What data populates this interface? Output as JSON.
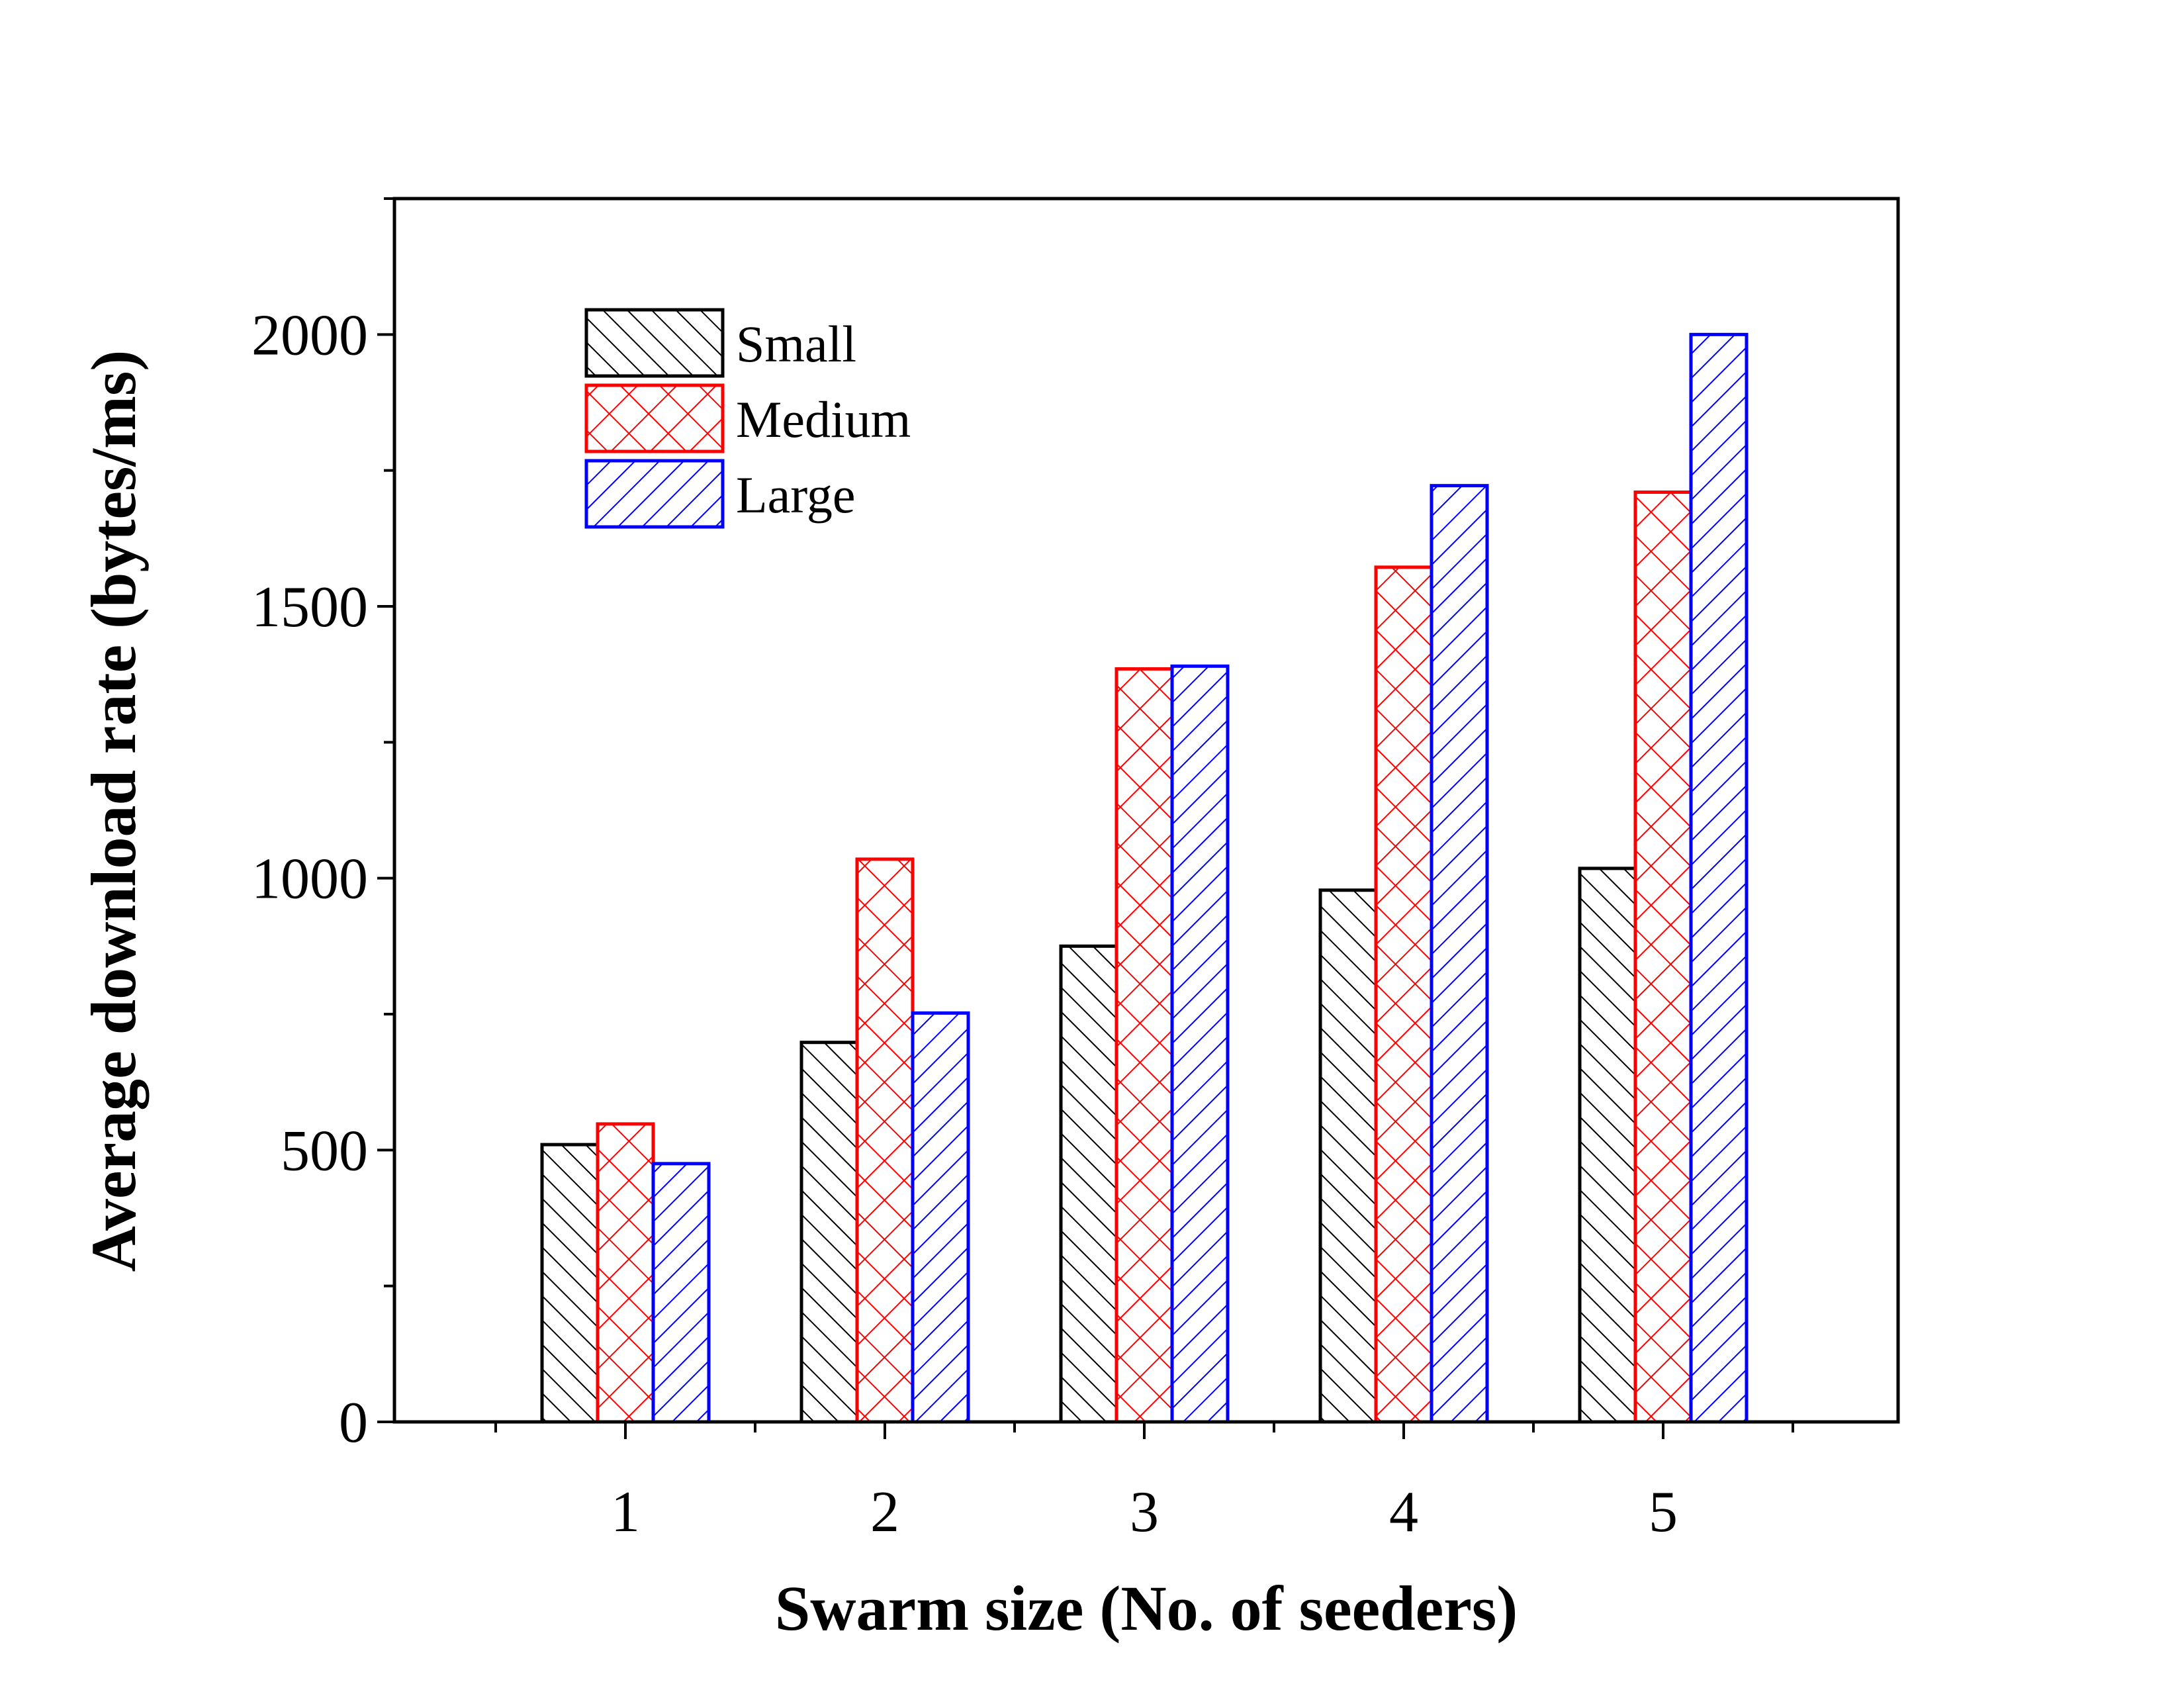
{
  "chart_data": {
    "type": "bar",
    "title": "",
    "xlabel": "Swarm size (No. of seeders)",
    "ylabel": "Average download rate (bytes/ms)",
    "categories": [
      "1",
      "2",
      "3",
      "4",
      "5"
    ],
    "x_ticks": [
      "1",
      "2",
      "3",
      "4",
      "5"
    ],
    "y_ticks": [
      "0",
      "500",
      "1000",
      "1500",
      "2000"
    ],
    "ylim": [
      0,
      2250
    ],
    "grid": false,
    "legend_position": "top-left",
    "series": [
      {
        "name": "Small",
        "color": "#000000",
        "pattern": "backslash-hatch",
        "values": [
          510,
          698,
          875,
          978,
          1018
        ]
      },
      {
        "name": "Medium",
        "color": "#ff0000",
        "pattern": "cross-hatch",
        "values": [
          548,
          1035,
          1385,
          1572,
          1710
        ]
      },
      {
        "name": "Large",
        "color": "#0000ff",
        "pattern": "slash-hatch",
        "values": [
          475,
          752,
          1390,
          1722,
          2000
        ]
      }
    ]
  }
}
